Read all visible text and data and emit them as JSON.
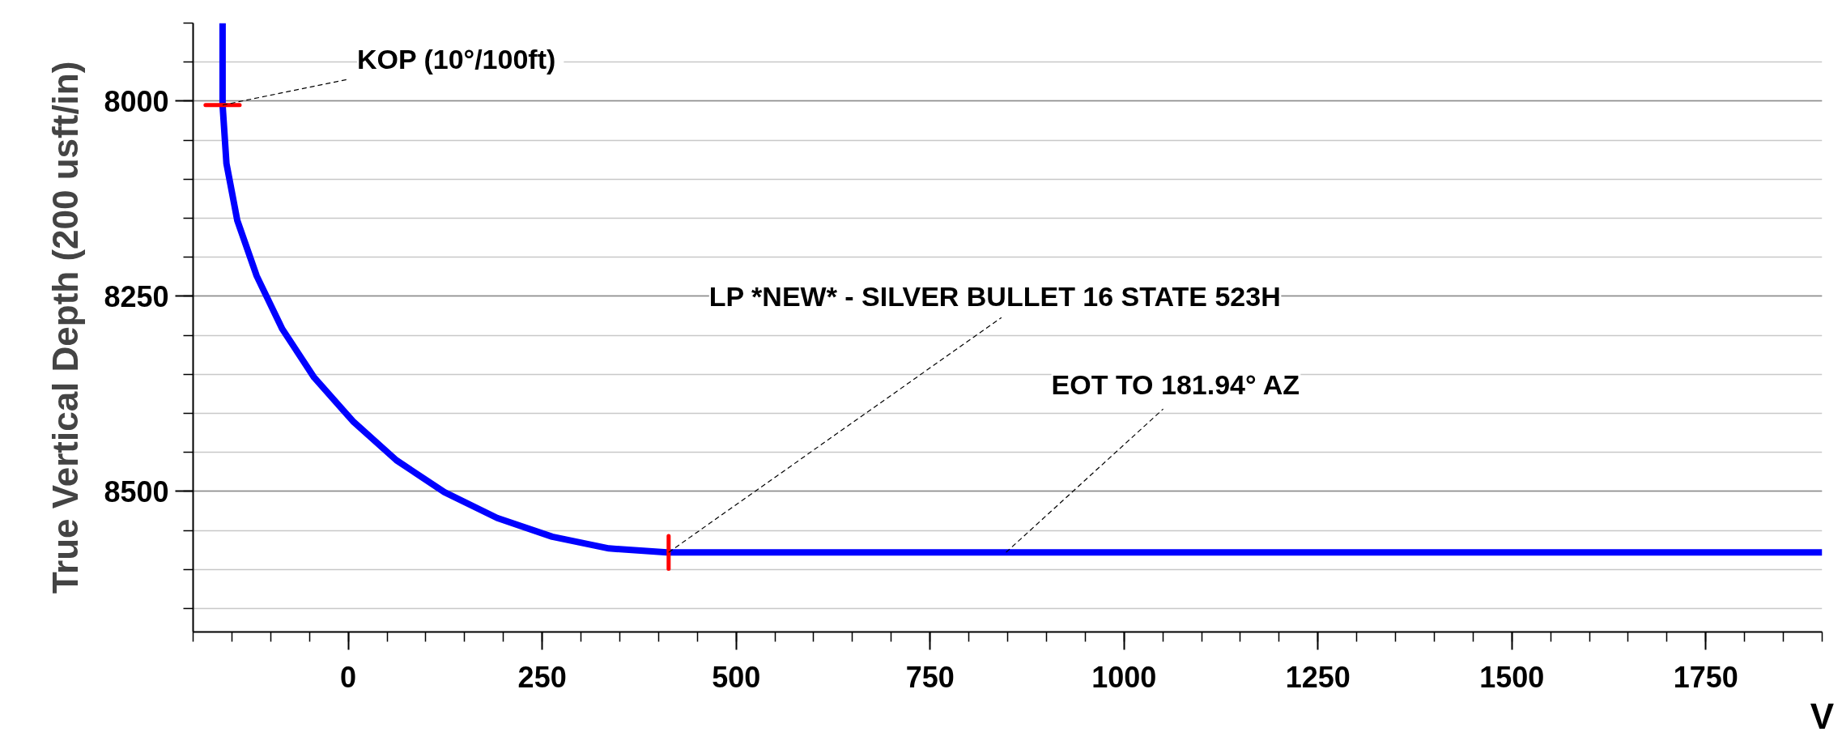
{
  "chart_data": {
    "type": "line",
    "ylabel": "True Vertical Depth (200 usft/in)",
    "xlabel": "V",
    "xlim": [
      -200,
      1900
    ],
    "ylim": [
      8680,
      7900
    ],
    "xticks": [
      0,
      250,
      500,
      750,
      1000,
      1250,
      1500,
      1750
    ],
    "yticks": [
      8000,
      8250,
      8500
    ],
    "grid": true,
    "line_style": "solid",
    "series": [
      {
        "color": "#0000ff",
        "x": [
          -162,
          -162,
          -157,
          -143,
          -118,
          -85,
          -44,
          6,
          62,
          124,
          192,
          263,
          336,
          411,
          1900
        ],
        "values": [
          7900,
          8005,
          8080,
          8153,
          8224,
          8292,
          8354,
          8410,
          8460,
          8501,
          8534,
          8558,
          8573,
          8578,
          8578
        ]
      },
      {
        "color": "#ff0000",
        "x": [
          -184,
          -140
        ],
        "values": [
          8005,
          8005
        ]
      },
      {
        "color": "#ff0000",
        "x": [
          413,
          413
        ],
        "values": [
          8557,
          8599
        ]
      }
    ],
    "annotations": [
      {
        "text": "KOP  (10°/100ft)",
        "x": -162,
        "y": 8005
      },
      {
        "text": "LP *NEW* - SILVER BULLET 16 STATE 523H",
        "x": 413,
        "y": 8578
      },
      {
        "text": "EOT TO 181.94° AZ",
        "x": 848,
        "y": 8578
      }
    ]
  }
}
